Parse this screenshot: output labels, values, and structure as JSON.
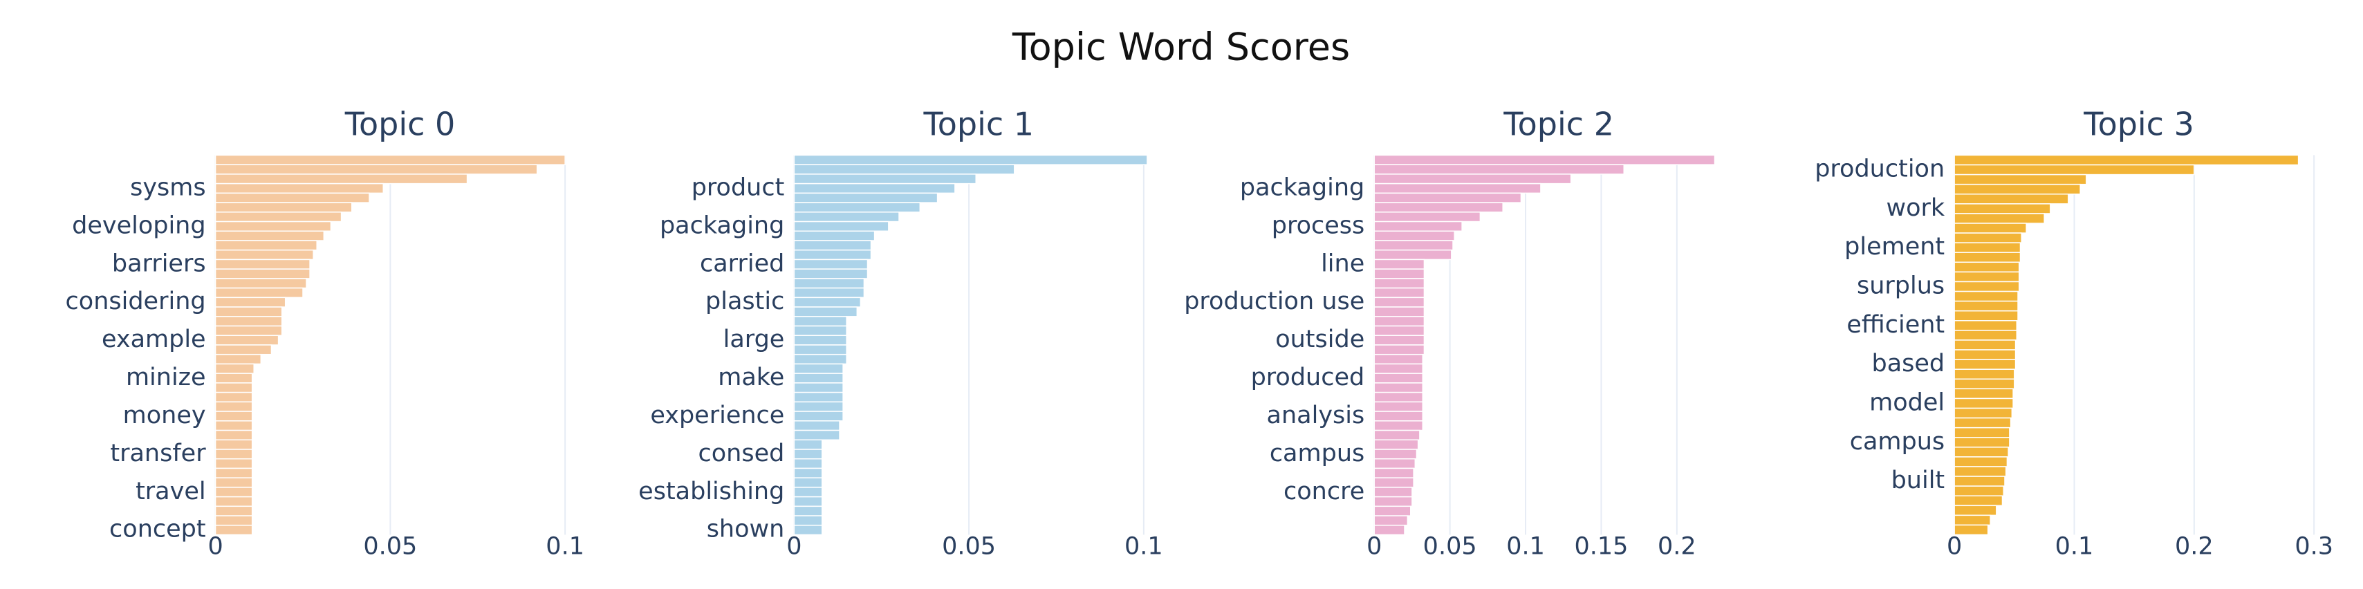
{
  "title": "Topic Word Scores",
  "chart_data": [
    {
      "type": "barh",
      "title": "Topic 0",
      "color": "#f5c9a0",
      "categories": [
        null,
        null,
        null,
        "sysms",
        null,
        null,
        null,
        "developing",
        null,
        null,
        null,
        "barriers",
        null,
        null,
        null,
        "considering",
        null,
        null,
        null,
        "example",
        null,
        null,
        null,
        "minize",
        null,
        null,
        null,
        "money",
        null,
        null,
        null,
        "transfer",
        null,
        null,
        null,
        "travel",
        null,
        null,
        null,
        "concept"
      ],
      "values": [
        0.1,
        0.092,
        0.072,
        0.048,
        0.044,
        0.039,
        0.036,
        0.033,
        0.031,
        0.029,
        0.028,
        0.027,
        0.027,
        0.026,
        0.025,
        0.02,
        0.019,
        0.019,
        0.019,
        0.018,
        0.016,
        0.013,
        0.011,
        0.0105,
        0.0105,
        0.0105,
        0.0105,
        0.0105,
        0.0105,
        0.0105,
        0.0105,
        0.0105,
        0.0105,
        0.0105,
        0.0105,
        0.0105,
        0.0105,
        0.0105,
        0.0105,
        0.0105
      ],
      "xlim": [
        0,
        0.1056
      ],
      "xticks": [
        0,
        0.05,
        0.1
      ],
      "grid": true
    },
    {
      "type": "barh",
      "title": "Topic 1",
      "color": "#acd3e9",
      "categories": [
        null,
        null,
        null,
        "product",
        null,
        null,
        null,
        "packaging",
        null,
        null,
        null,
        "carried",
        null,
        null,
        null,
        "plastic",
        null,
        null,
        null,
        "large",
        null,
        null,
        null,
        "make",
        null,
        null,
        null,
        "experience",
        null,
        null,
        null,
        "consed",
        null,
        null,
        null,
        "establishing",
        null,
        null,
        null,
        "shown"
      ],
      "values": [
        0.101,
        0.063,
        0.052,
        0.046,
        0.041,
        0.036,
        0.03,
        0.027,
        0.023,
        0.022,
        0.022,
        0.021,
        0.021,
        0.02,
        0.02,
        0.019,
        0.018,
        0.015,
        0.015,
        0.015,
        0.015,
        0.015,
        0.014,
        0.014,
        0.014,
        0.014,
        0.014,
        0.014,
        0.013,
        0.013,
        0.008,
        0.008,
        0.008,
        0.008,
        0.008,
        0.008,
        0.008,
        0.008,
        0.008,
        0.008
      ],
      "xlim": [
        0,
        0.1056
      ],
      "xticks": [
        0,
        0.05,
        0.1
      ],
      "grid": true
    },
    {
      "type": "barh",
      "title": "Topic 2",
      "color": "#ebb0d0",
      "categories": [
        null,
        null,
        null,
        "packaging",
        null,
        null,
        null,
        "process",
        null,
        null,
        null,
        "line",
        null,
        null,
        null,
        "production use",
        null,
        null,
        null,
        "outside",
        null,
        null,
        null,
        "produced",
        null,
        null,
        null,
        "analysis",
        null,
        null,
        null,
        "campus",
        null,
        null,
        null,
        "concre",
        null,
        null,
        null,
        null
      ],
      "values": [
        0.225,
        0.165,
        0.13,
        0.11,
        0.097,
        0.085,
        0.07,
        0.058,
        0.053,
        0.052,
        0.051,
        0.033,
        0.033,
        0.033,
        0.033,
        0.033,
        0.033,
        0.033,
        0.033,
        0.033,
        0.033,
        0.032,
        0.032,
        0.032,
        0.032,
        0.032,
        0.032,
        0.032,
        0.032,
        0.03,
        0.029,
        0.028,
        0.027,
        0.026,
        0.026,
        0.025,
        0.025,
        0.024,
        0.022,
        0.02
      ],
      "xlim": [
        0,
        0.244
      ],
      "xticks": [
        0,
        0.05,
        0.1,
        0.15,
        0.2
      ],
      "grid": true
    },
    {
      "type": "barh",
      "title": "Topic 3",
      "color": "#f2b437",
      "categories": [
        null,
        "production",
        null,
        null,
        null,
        "work",
        null,
        null,
        null,
        "plement",
        null,
        null,
        null,
        "surplus",
        null,
        null,
        null,
        "efficient",
        null,
        null,
        null,
        "based",
        null,
        null,
        null,
        "model",
        null,
        null,
        null,
        "campus",
        null,
        null,
        null,
        "built",
        null,
        null,
        null,
        null,
        null
      ],
      "values": [
        0.287,
        0.2,
        0.11,
        0.105,
        0.095,
        0.08,
        0.075,
        0.06,
        0.056,
        0.055,
        0.055,
        0.054,
        0.054,
        0.054,
        0.053,
        0.053,
        0.053,
        0.052,
        0.052,
        0.051,
        0.051,
        0.051,
        0.05,
        0.05,
        0.049,
        0.049,
        0.048,
        0.047,
        0.046,
        0.046,
        0.045,
        0.044,
        0.043,
        0.042,
        0.041,
        0.04,
        0.035,
        0.03,
        0.028
      ],
      "xlim": [
        0,
        0.308
      ],
      "xticks": [
        0,
        0.1,
        0.2,
        0.3
      ],
      "grid": true
    }
  ]
}
